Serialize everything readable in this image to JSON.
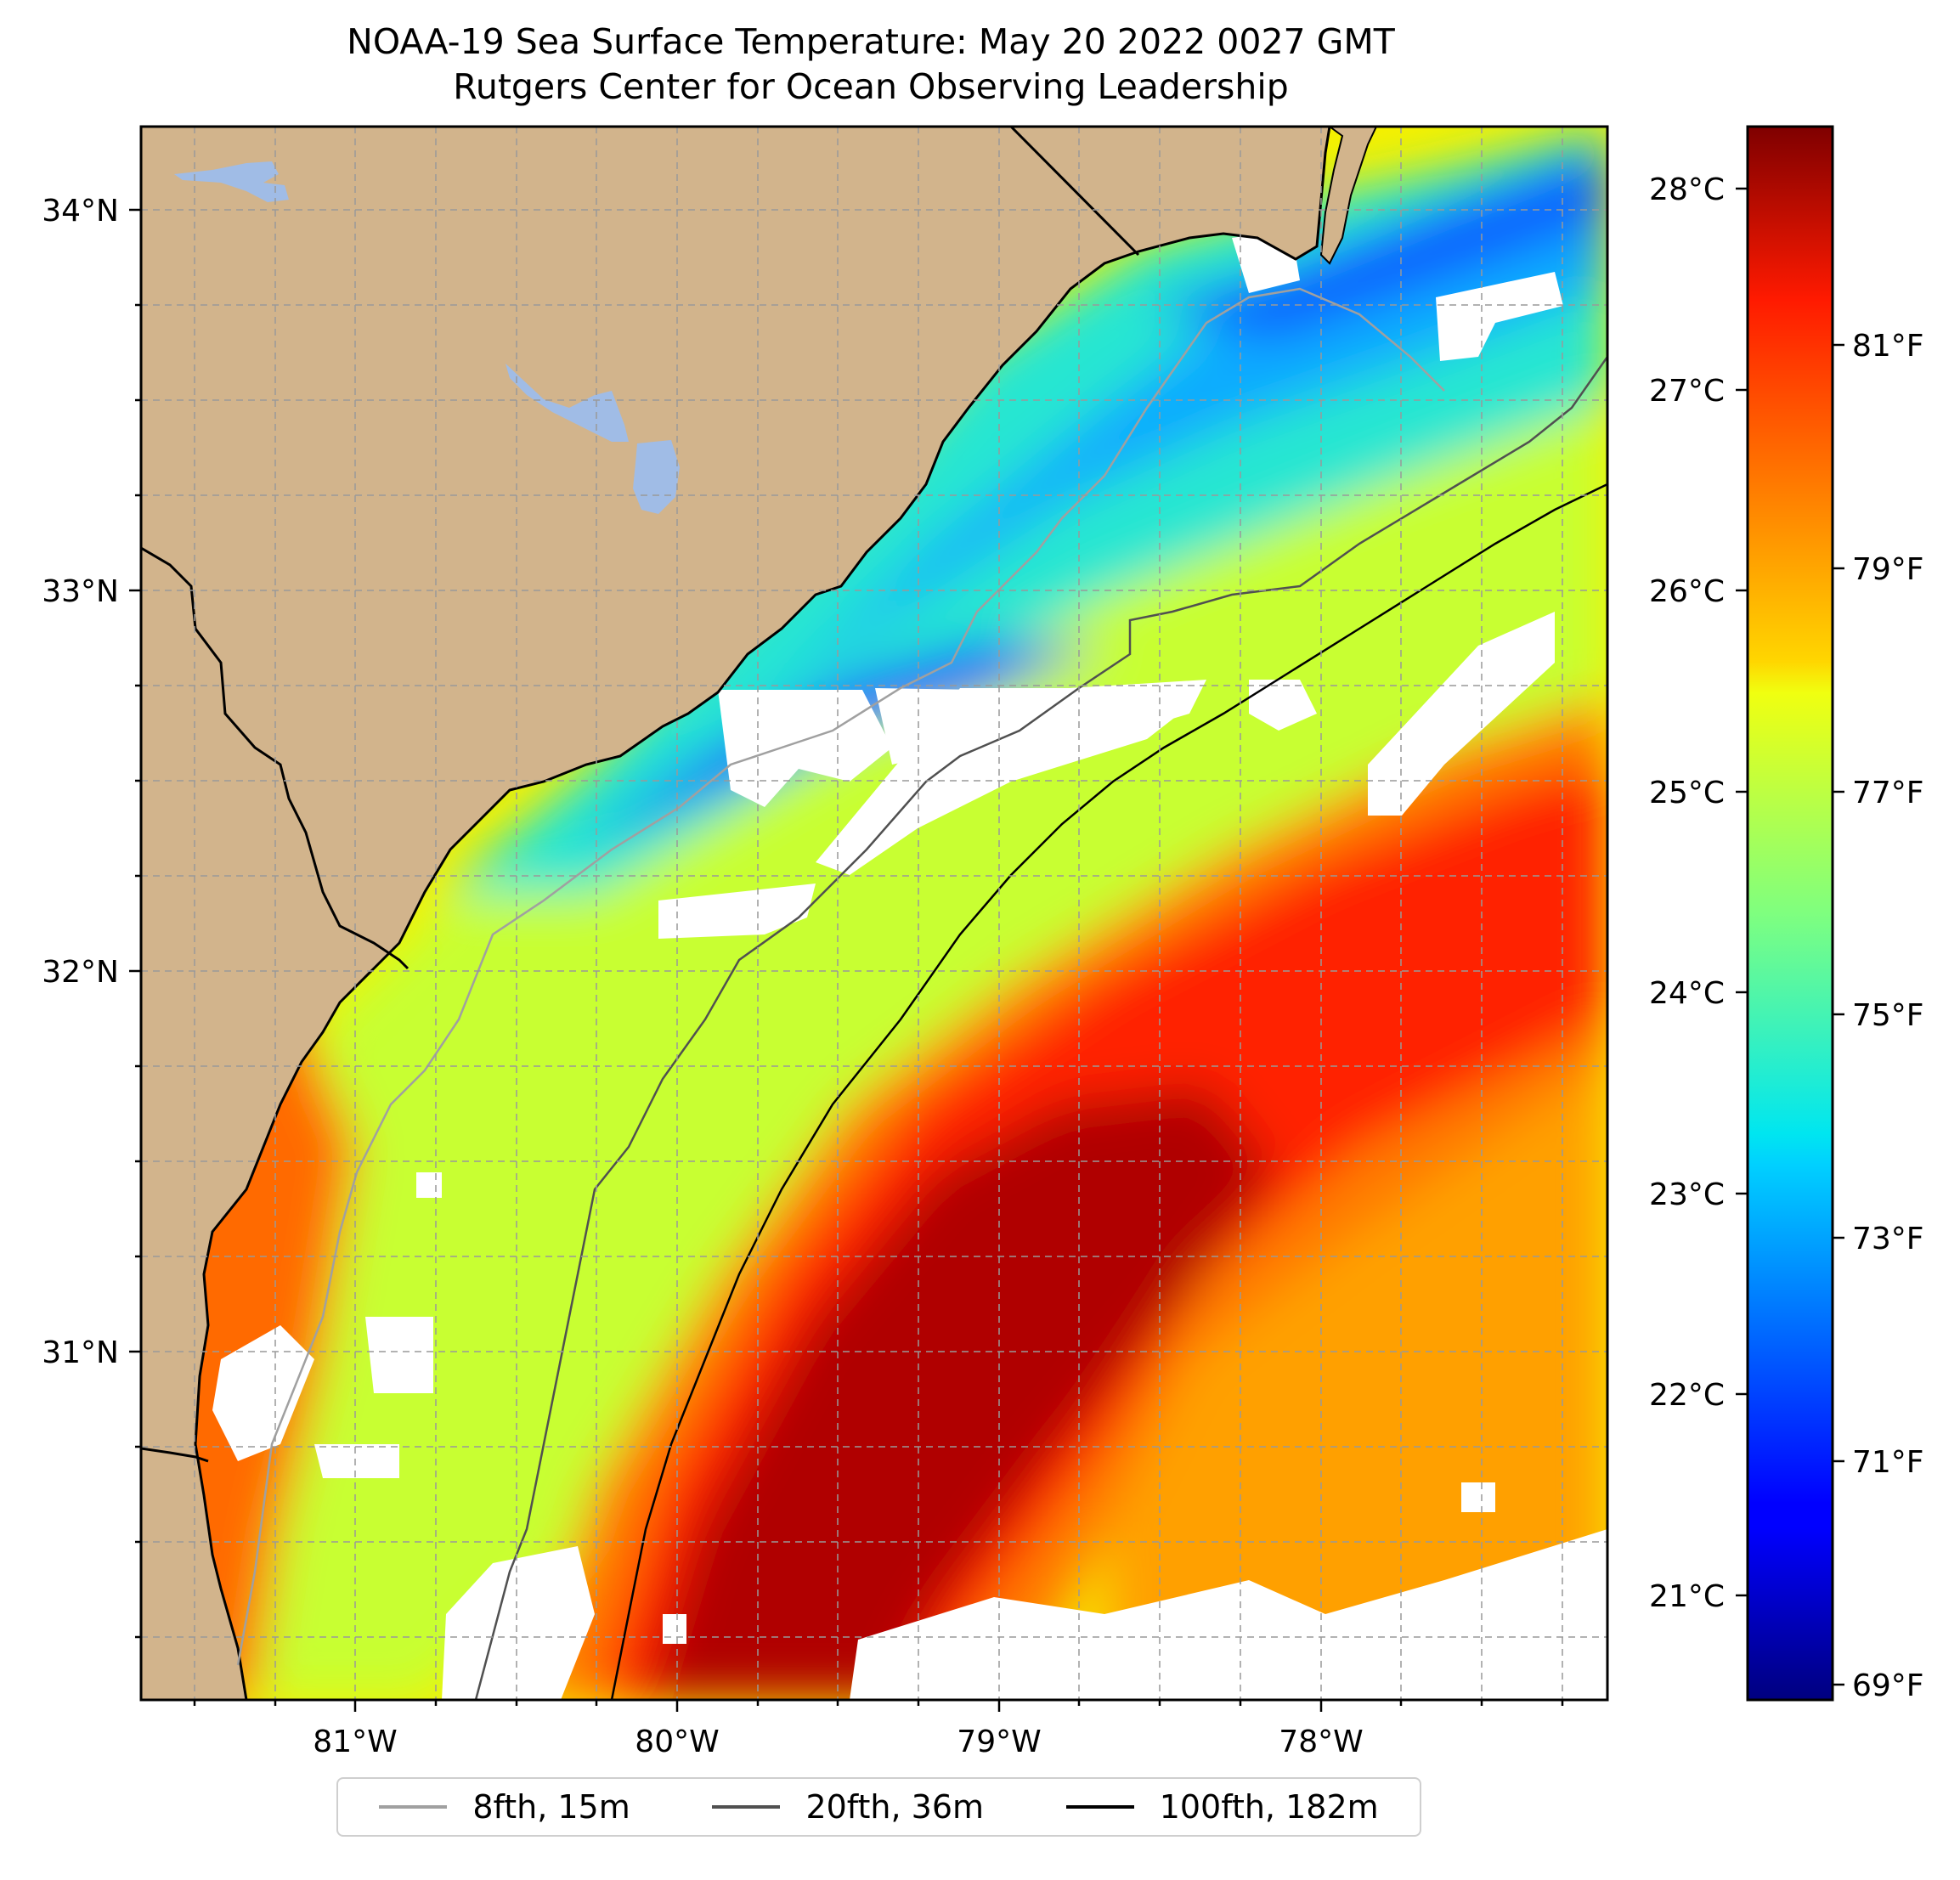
{
  "title": "NOAA-19 Sea Surface Temperature: May 20 2022 0027 GMT",
  "subtitle": "Rutgers Center for Ocean Observing Leadership",
  "map": {
    "lon_labels": [
      "81°W",
      "80°W",
      "79°W",
      "78°W"
    ],
    "lat_labels": [
      "34°N",
      "33°N",
      "32°N",
      "31°N"
    ],
    "land_color": "#d2b48c",
    "lake_color": "#a0bce6",
    "cloud_color": "#ffffff",
    "grid": "dashed"
  },
  "colorbar": {
    "colormap": "jet",
    "celsius_labels": [
      "28°C",
      "27°C",
      "26°C",
      "25°C",
      "24°C",
      "23°C",
      "22°C",
      "21°C"
    ],
    "fahrenheit_labels": [
      "81°F",
      "79°F",
      "77°F",
      "75°F",
      "73°F",
      "71°F",
      "69°F"
    ]
  },
  "legend": [
    {
      "label": "8fth, 15m",
      "color": "#a0a0a0"
    },
    {
      "label": "20fth, 36m",
      "color": "#505050"
    },
    {
      "label": "100fth, 182m",
      "color": "#000000"
    }
  ]
}
